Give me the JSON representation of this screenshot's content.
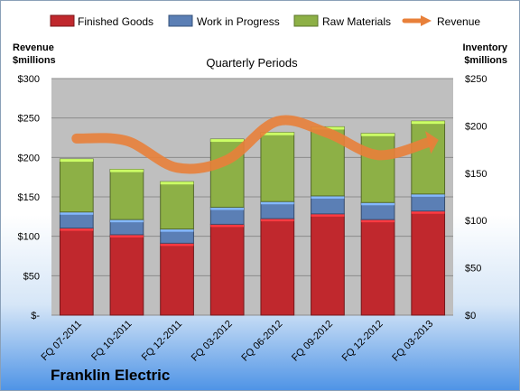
{
  "chart_data": {
    "type": "bar",
    "subtitle": "Quarterly Periods",
    "brand": "Franklin Electric",
    "categories": [
      "FQ 07-2011",
      "FQ 10-2011",
      "FQ 12-2011",
      "FQ 03-2012",
      "FQ 06-2012",
      "FQ 09-2012",
      "FQ 12-2012",
      "FQ 03-2013"
    ],
    "left_axis": {
      "label_line1": "Revenue",
      "label_line2": "$millions",
      "ylim": [
        0,
        300
      ],
      "ticks": [
        "$-",
        "$50",
        "$100",
        "$150",
        "$200",
        "$250",
        "$300"
      ]
    },
    "right_axis": {
      "label_line1": "Inventory",
      "label_line2": "$millions",
      "ylim": [
        0,
        250
      ],
      "ticks": [
        "$0",
        "$50",
        "$100",
        "$150",
        "$200",
        "$250"
      ]
    },
    "series": [
      {
        "name": "Finished Goods",
        "axis": "right",
        "color": "#c0282d",
        "values": [
          92,
          85,
          76,
          96,
          102,
          107,
          101,
          110
        ]
      },
      {
        "name": "Work in Progress",
        "axis": "right",
        "color": "#5b7fb5",
        "values": [
          17,
          16,
          15,
          18,
          18,
          19,
          18,
          18
        ]
      },
      {
        "name": "Raw Materials",
        "axis": "right",
        "color": "#8db046",
        "values": [
          56,
          53,
          50,
          72,
          73,
          73,
          73,
          77
        ]
      },
      {
        "name": "Revenue",
        "axis": "left",
        "type": "line",
        "color": "#e8803a",
        "values": [
          224,
          221,
          187,
          197,
          246,
          231,
          203,
          219
        ]
      }
    ],
    "legend": {
      "placement": "top",
      "items": [
        "Finished Goods",
        "Work in Progress",
        "Raw Materials",
        "Revenue"
      ]
    },
    "grid": true
  }
}
